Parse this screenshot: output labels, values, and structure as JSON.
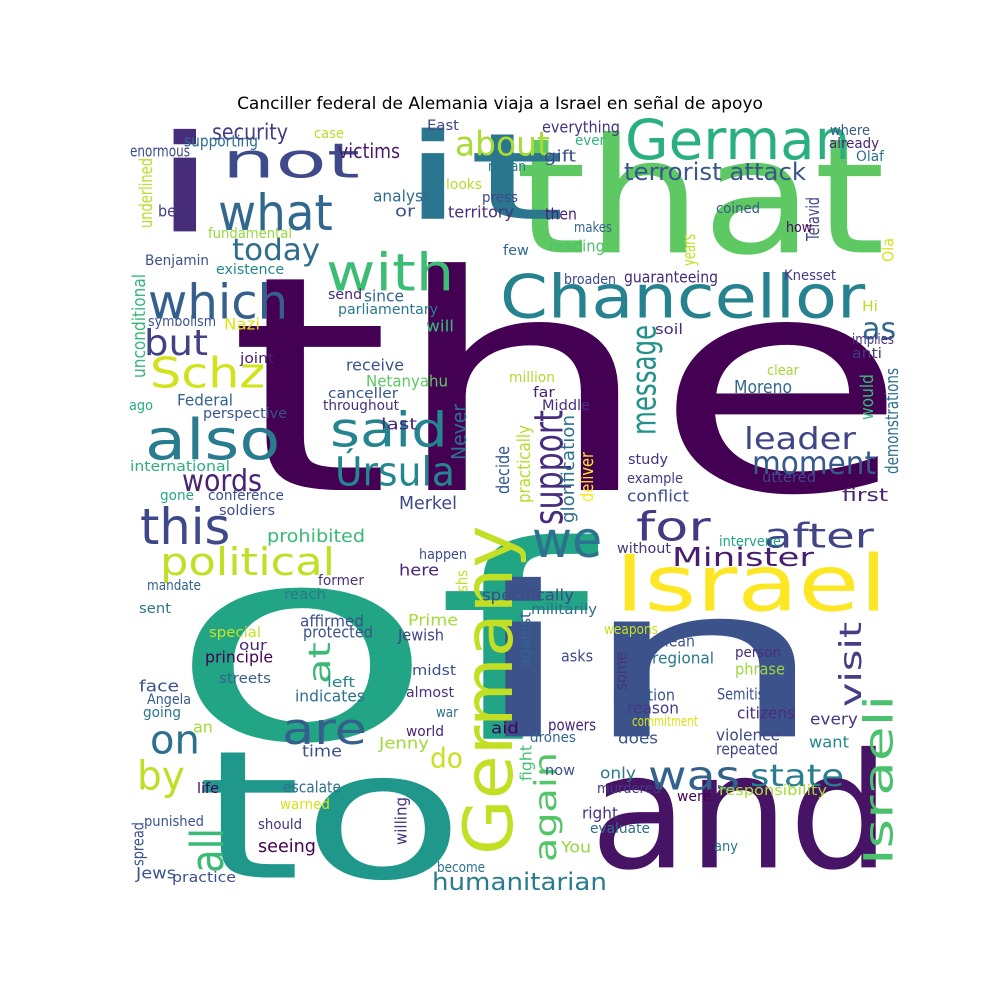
{
  "title": "Canciller federal de Alemania viaja a Israel en señal de apoyo",
  "words": [
    {
      "text": "the",
      "color": "#440154"
    },
    {
      "text": "that",
      "color": "#5ec962"
    },
    {
      "text": "of",
      "color": "#21a585"
    },
    {
      "text": "in",
      "color": "#3b528b"
    },
    {
      "text": "to",
      "color": "#1f988b"
    },
    {
      "text": "and",
      "color": "#471365"
    },
    {
      "text": "it",
      "color": "#2a768e"
    },
    {
      "text": "i",
      "color": "#472c7a"
    },
    {
      "text": "Germany",
      "color": "#c2df23"
    },
    {
      "text": "Israel",
      "color": "#fde725"
    },
    {
      "text": "Chancellor",
      "color": "#26828e"
    },
    {
      "text": "German",
      "color": "#2ab07f"
    },
    {
      "text": "not",
      "color": "#3e4a89"
    },
    {
      "text": "what",
      "color": "#31688e"
    },
    {
      "text": "with",
      "color": "#3dbc74"
    },
    {
      "text": "which",
      "color": "#35608d"
    },
    {
      "text": "also",
      "color": "#297b8e"
    },
    {
      "text": "said",
      "color": "#25858e"
    },
    {
      "text": "this",
      "color": "#3e4989"
    },
    {
      "text": "Schz",
      "color": "#d2e21b"
    },
    {
      "text": "Úrsula",
      "color": "#24868e"
    },
    {
      "text": "we",
      "color": "#2c718e"
    },
    {
      "text": "for",
      "color": "#443983"
    },
    {
      "text": "are",
      "color": "#355f8d"
    },
    {
      "text": "was",
      "color": "#33638d"
    },
    {
      "text": "on",
      "color": "#2d708e"
    },
    {
      "text": "by",
      "color": "#bddf26"
    },
    {
      "text": "all",
      "color": "#3aba76"
    },
    {
      "text": "Israeli",
      "color": "#4ac16d"
    },
    {
      "text": "visit",
      "color": "#433e85"
    },
    {
      "text": "political",
      "color": "#c0df25"
    },
    {
      "text": "support",
      "color": "#472d7b"
    },
    {
      "text": "message",
      "color": "#21918c"
    },
    {
      "text": "about",
      "color": "#a8db34"
    },
    {
      "text": "after",
      "color": "#414487"
    },
    {
      "text": "Minister",
      "color": "#481f70"
    },
    {
      "text": "moment",
      "color": "#38598c"
    },
    {
      "text": "leader",
      "color": "#404588"
    },
    {
      "text": "state",
      "color": "#287d8e"
    },
    {
      "text": "again",
      "color": "#52c569"
    },
    {
      "text": "at",
      "color": "#3aba76"
    },
    {
      "text": "but",
      "color": "#424086"
    },
    {
      "text": "words",
      "color": "#482475"
    },
    {
      "text": "today",
      "color": "#2f6c8e"
    },
    {
      "text": "as",
      "color": "#31688e"
    },
    {
      "text": "do",
      "color": "#c8e020"
    },
    {
      "text": "humanitarian",
      "color": "#287c8e"
    },
    {
      "text": "terrorist attack",
      "color": "#39568c"
    },
    {
      "text": "security",
      "color": "#443a83"
    },
    {
      "text": "victims",
      "color": "#481a6c"
    },
    {
      "text": "supporting",
      "color": "#2e6d8e"
    },
    {
      "text": "enormous",
      "color": "#3e4a89"
    },
    {
      "text": "case",
      "color": "#b5de2b"
    },
    {
      "text": "East",
      "color": "#404688"
    },
    {
      "text": "everything",
      "color": "#46327e"
    },
    {
      "text": "ever",
      "color": "#2db27d"
    },
    {
      "text": "gift",
      "color": "#3e4c8a"
    },
    {
      "text": "nedan",
      "color": "#2a788e"
    },
    {
      "text": "where",
      "color": "#375a8c"
    },
    {
      "text": "already",
      "color": "#482677"
    },
    {
      "text": "Olaf",
      "color": "#2c728e"
    },
    {
      "text": "looks",
      "color": "#b5de2b"
    },
    {
      "text": "press",
      "color": "#3f4889"
    },
    {
      "text": "territory",
      "color": "#472f7d"
    },
    {
      "text": "analyst",
      "color": "#2f6b8e"
    },
    {
      "text": "then",
      "color": "#482071"
    },
    {
      "text": "makes",
      "color": "#33638d"
    },
    {
      "text": "coined",
      "color": "#38588c"
    },
    {
      "text": "underlined",
      "color": "#b5de2b"
    },
    {
      "text": "fundamental",
      "color": "#95d840"
    },
    {
      "text": "be",
      "color": "#424086"
    },
    {
      "text": "or",
      "color": "#3d4e8a"
    },
    {
      "text": "reading",
      "color": "#4ec36b"
    },
    {
      "text": "few",
      "color": "#31688e"
    },
    {
      "text": "Telavid",
      "color": "#404588"
    },
    {
      "text": "how",
      "color": "#460a5d"
    },
    {
      "text": "years",
      "color": "#c2df23"
    },
    {
      "text": "Ola",
      "color": "#dae319"
    },
    {
      "text": "Benjamin",
      "color": "#3b528b"
    },
    {
      "text": "existence",
      "color": "#24878e"
    },
    {
      "text": "send",
      "color": "#482576"
    },
    {
      "text": "broaden",
      "color": "#3e4989"
    },
    {
      "text": "guaranteeing",
      "color": "#472a7a"
    },
    {
      "text": "Knesset",
      "color": "#453882"
    },
    {
      "text": "since",
      "color": "#32658e"
    },
    {
      "text": "parliamentary",
      "color": "#2a788e"
    },
    {
      "text": "symbolism",
      "color": "#3b528b"
    },
    {
      "text": "Nazi",
      "color": "#dde318"
    },
    {
      "text": "will",
      "color": "#3aba76"
    },
    {
      "text": "soil",
      "color": "#472a7a"
    },
    {
      "text": "Hi",
      "color": "#b8de29"
    },
    {
      "text": "implies",
      "color": "#46337f"
    },
    {
      "text": "anti",
      "color": "#443983"
    },
    {
      "text": "unconditional",
      "color": "#35b779"
    },
    {
      "text": "joint",
      "color": "#482071"
    },
    {
      "text": "receive",
      "color": "#3b528b"
    },
    {
      "text": "Netanyahu",
      "color": "#5ec962"
    },
    {
      "text": "million",
      "color": "#addc30"
    },
    {
      "text": "clear",
      "color": "#a0da39"
    },
    {
      "text": "canceller",
      "color": "#39568c"
    },
    {
      "text": "far",
      "color": "#482173"
    },
    {
      "text": "Moreno",
      "color": "#31688e"
    },
    {
      "text": "would",
      "color": "#3aba76"
    },
    {
      "text": "demonstrations",
      "color": "#2d708e"
    },
    {
      "text": "ago",
      "color": "#25ab82"
    },
    {
      "text": "Federal",
      "color": "#33638d"
    },
    {
      "text": "perspective",
      "color": "#3b528b"
    },
    {
      "text": "throughout",
      "color": "#462f7d"
    },
    {
      "text": "Middle",
      "color": "#46307e"
    },
    {
      "text": "glorification",
      "color": "#2c728e"
    },
    {
      "text": "Never",
      "color": "#2e6e8e"
    },
    {
      "text": "last",
      "color": "#482878"
    },
    {
      "text": "decide",
      "color": "#38598c"
    },
    {
      "text": "practically",
      "color": "#b5de2b"
    },
    {
      "text": "deliver",
      "color": "#fde725"
    },
    {
      "text": "study",
      "color": "#46337f"
    },
    {
      "text": "uttered",
      "color": "#3f4788"
    },
    {
      "text": "international",
      "color": "#2ab07f"
    },
    {
      "text": "example",
      "color": "#443a83"
    },
    {
      "text": "conflict",
      "color": "#3d4d8a"
    },
    {
      "text": "first",
      "color": "#482475"
    },
    {
      "text": "gone",
      "color": "#22a785"
    },
    {
      "text": "conference",
      "color": "#3c4f8a"
    },
    {
      "text": "soldiers",
      "color": "#3c4f8a"
    },
    {
      "text": "Merkel",
      "color": "#3f4788"
    },
    {
      "text": "prohibited",
      "color": "#3aba76"
    },
    {
      "text": "intervene",
      "color": "#20a386"
    },
    {
      "text": "without",
      "color": "#463480"
    },
    {
      "text": "happen",
      "color": "#3d4e8a"
    },
    {
      "text": "shs",
      "color": "#c2df23"
    },
    {
      "text": "mandate",
      "color": "#34618d"
    },
    {
      "text": "here",
      "color": "#482576"
    },
    {
      "text": "former",
      "color": "#46317e"
    },
    {
      "text": "reach",
      "color": "#2b748e"
    },
    {
      "text": "specifically",
      "color": "#3e4a89"
    },
    {
      "text": "militarily",
      "color": "#2e6d8e"
    },
    {
      "text": "sent",
      "color": "#2a788e"
    },
    {
      "text": "affirmed",
      "color": "#3c508b"
    },
    {
      "text": "Prime",
      "color": "#a5db36"
    },
    {
      "text": "weapons",
      "color": "#c8e020"
    },
    {
      "text": "special",
      "color": "#cae11f"
    },
    {
      "text": "protected",
      "color": "#3b528b"
    },
    {
      "text": "our",
      "color": "#482878"
    },
    {
      "text": "Jewish",
      "color": "#414487"
    },
    {
      "text": "against",
      "color": "#32648e"
    },
    {
      "text": "mean",
      "color": "#3b528b"
    },
    {
      "text": "principle",
      "color": "#440154"
    },
    {
      "text": "regional",
      "color": "#2a778e"
    },
    {
      "text": "some",
      "color": "#46327e"
    },
    {
      "text": "asks",
      "color": "#3e4989"
    },
    {
      "text": "person",
      "color": "#472c7a"
    },
    {
      "text": "midst",
      "color": "#3d4e8a"
    },
    {
      "text": "streets",
      "color": "#34618d"
    },
    {
      "text": "left",
      "color": "#25848e"
    },
    {
      "text": "face",
      "color": "#3b528b"
    },
    {
      "text": "phrase",
      "color": "#9bd93c"
    },
    {
      "text": "Angela",
      "color": "#375b8d"
    },
    {
      "text": "indicates",
      "color": "#2d708e"
    },
    {
      "text": "almost",
      "color": "#46337f"
    },
    {
      "text": "question",
      "color": "#39558c"
    },
    {
      "text": "reason",
      "color": "#443983"
    },
    {
      "text": "Semitism",
      "color": "#3b518b"
    },
    {
      "text": "going",
      "color": "#2b758e"
    },
    {
      "text": "war",
      "color": "#2c728e"
    },
    {
      "text": "commitment",
      "color": "#dae319"
    },
    {
      "text": "citizens",
      "color": "#472d7b"
    },
    {
      "text": "every",
      "color": "#453781"
    },
    {
      "text": "an",
      "color": "#a5db36"
    },
    {
      "text": "world",
      "color": "#482475"
    },
    {
      "text": "aid",
      "color": "#440154"
    },
    {
      "text": "powers",
      "color": "#482576"
    },
    {
      "text": "drones",
      "color": "#31688e"
    },
    {
      "text": "violence",
      "color": "#3f4788"
    },
    {
      "text": "does",
      "color": "#3b528b"
    },
    {
      "text": "Jenny",
      "color": "#a2da37"
    },
    {
      "text": "want",
      "color": "#24868e"
    },
    {
      "text": "repeated",
      "color": "#404588"
    },
    {
      "text": "time",
      "color": "#3b518b"
    },
    {
      "text": "fight",
      "color": "#44bf70"
    },
    {
      "text": "now",
      "color": "#3b528b"
    },
    {
      "text": "only",
      "color": "#2a788e"
    },
    {
      "text": "life",
      "color": "#440154"
    },
    {
      "text": "escalate",
      "color": "#2e6e8e"
    },
    {
      "text": "were",
      "color": "#440154"
    },
    {
      "text": "murdered",
      "color": "#453882"
    },
    {
      "text": "responsibility",
      "color": "#a8db34"
    },
    {
      "text": "warned",
      "color": "#d5e21a"
    },
    {
      "text": "right",
      "color": "#463480"
    },
    {
      "text": "punished",
      "color": "#3b528b"
    },
    {
      "text": "should",
      "color": "#46327e"
    },
    {
      "text": "willing",
      "color": "#46327e"
    },
    {
      "text": "evaluate",
      "color": "#2f6b8e"
    },
    {
      "text": "You",
      "color": "#93d741"
    },
    {
      "text": "seeing",
      "color": "#440154"
    },
    {
      "text": "spread",
      "color": "#3b528b"
    },
    {
      "text": "any",
      "color": "#2a778e"
    },
    {
      "text": "Jews",
      "color": "#39568c"
    },
    {
      "text": "become",
      "color": "#2c728e"
    },
    {
      "text": "practice",
      "color": "#3c508b"
    }
  ]
}
